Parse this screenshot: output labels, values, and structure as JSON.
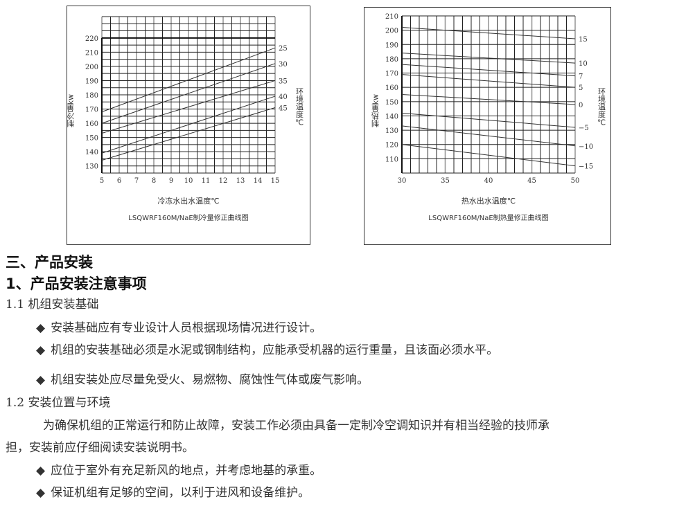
{
  "chart_data": [
    {
      "type": "line",
      "xlabel": "冷冻水出水温度℃",
      "ylabel": "制冷量kw",
      "right_label": "环境温度℃",
      "caption": "LSQWRF160M/NaE制冷量修正曲线图",
      "xlim": [
        5,
        15
      ],
      "ylim": [
        125,
        235
      ],
      "x_ticks": [
        5,
        6,
        7,
        8,
        9,
        10,
        11,
        12,
        13,
        14,
        15
      ],
      "y_ticks": [
        130,
        140,
        150,
        160,
        170,
        180,
        190,
        200,
        210,
        220
      ],
      "grid": true,
      "series": [
        {
          "name": "25",
          "x": [
            5,
            15
          ],
          "y": [
            168,
            213
          ]
        },
        {
          "name": "30",
          "x": [
            5,
            15
          ],
          "y": [
            160,
            202
          ]
        },
        {
          "name": "35",
          "x": [
            5,
            15
          ],
          "y": [
            153,
            190
          ]
        },
        {
          "name": "40",
          "x": [
            5,
            15
          ],
          "y": [
            139,
            179
          ]
        },
        {
          "name": "45",
          "x": [
            5,
            15
          ],
          "y": [
            134,
            171
          ]
        }
      ]
    },
    {
      "type": "line",
      "xlabel": "热水出水温度℃",
      "ylabel": "制热量kw",
      "right_label": "环境温度℃",
      "caption": "LSQWRF160M/NaE制热量修正曲线图",
      "xlim": [
        30,
        50
      ],
      "ylim": [
        100,
        210
      ],
      "x_ticks": [
        30,
        35,
        40,
        45,
        50
      ],
      "y_ticks": [
        110,
        120,
        130,
        140,
        150,
        160,
        170,
        180,
        190,
        200,
        210
      ],
      "grid": true,
      "series": [
        {
          "name": "15",
          "x": [
            30,
            50
          ],
          "y": [
            202,
            194
          ]
        },
        {
          "name": "10",
          "x": [
            30,
            50
          ],
          "y": [
            184,
            177
          ]
        },
        {
          "name": "7",
          "x": [
            30,
            50
          ],
          "y": [
            176,
            168
          ]
        },
        {
          "name": "5",
          "x": [
            30,
            50
          ],
          "y": [
            169,
            160
          ]
        },
        {
          "name": "0",
          "x": [
            30,
            50
          ],
          "y": [
            155,
            148
          ]
        },
        {
          "name": "−5",
          "x": [
            30,
            50
          ],
          "y": [
            142,
            132
          ]
        },
        {
          "name": "−10",
          "x": [
            30,
            50
          ],
          "y": [
            133,
            119
          ]
        },
        {
          "name": "−15",
          "x": [
            30,
            50
          ],
          "y": [
            120,
            105
          ]
        }
      ]
    }
  ],
  "doc": {
    "section_title": "三、产品安装",
    "subsection_title": "1、产品安装注意事项",
    "s11": "1.1 机组安装基础",
    "s11_bullets": [
      "安装基础应有专业设计人员根据现场情况进行设计。",
      "机组的安装基础必须是水泥或钢制结构，应能承受机器的运行重量，且该面必须水平。",
      "机组安装处应尽量免受火、易燃物、腐蚀性气体或废气影响。"
    ],
    "s12": "1.2 安装位置与环境",
    "s12_para_1": "为确保机组的正常运行和防止故障，安装工作必须由具备一定制冷空调知识并有相当经验的技师承",
    "s12_para_2": "担，安装前应仔细阅读安装说明书。",
    "s12_bullets": [
      "应位于室外有充足新风的地点，并考虑地基的承重。",
      "保证机组有足够的空间，以利于进风和设备维护。"
    ],
    "bullet_glyph": "◆"
  }
}
